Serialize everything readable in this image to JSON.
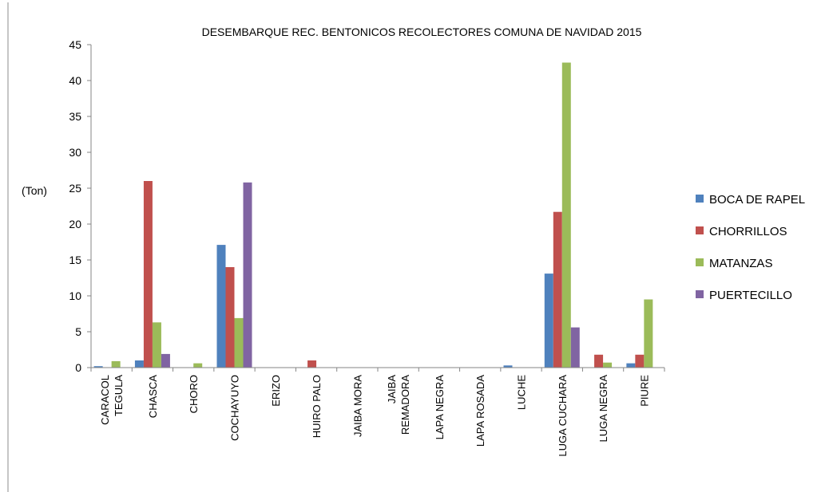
{
  "chart_data": {
    "type": "bar",
    "title": "DESEMBARQUE  REC. BENTONICOS  RECOLECTORES COMUNA DE NAVIDAD  2015",
    "ylabel": "(Ton)",
    "xlabel": "",
    "ylim": [
      0,
      45
    ],
    "yticks": [
      0,
      5,
      10,
      15,
      20,
      25,
      30,
      35,
      40,
      45
    ],
    "grid": false,
    "legend_position": "right",
    "categories": [
      [
        "CARACOL",
        "TEGULA"
      ],
      [
        "CHASCA"
      ],
      [
        "CHORO"
      ],
      [
        "COCHAYUYO"
      ],
      [
        "ERIZO"
      ],
      [
        "HUIRO PALO"
      ],
      [
        "JAIBA MORA"
      ],
      [
        "JAIBA",
        "REMADORA"
      ],
      [
        "LAPA NEGRA"
      ],
      [
        "LAPA ROSADA"
      ],
      [
        "LUCHE"
      ],
      [
        "LUGA CUCHARA"
      ],
      [
        "LUGA NEGRA"
      ],
      [
        "PIURE"
      ]
    ],
    "series": [
      {
        "name": "BOCA DE RAPEL",
        "color": "#4F81BD",
        "values": [
          0.2,
          1.0,
          0,
          17.1,
          0,
          0,
          0,
          0,
          0,
          0,
          0.3,
          13.1,
          0,
          0.6
        ]
      },
      {
        "name": "CHORRILLOS",
        "color": "#C0504D",
        "values": [
          0,
          26.0,
          0,
          14.0,
          0,
          1.0,
          0,
          0,
          0,
          0,
          0,
          21.7,
          1.8,
          1.8
        ]
      },
      {
        "name": "MATANZAS",
        "color": "#9BBB59",
        "values": [
          0.9,
          6.3,
          0.6,
          6.9,
          0,
          0,
          0,
          0,
          0,
          0,
          0,
          42.5,
          0.7,
          9.5
        ]
      },
      {
        "name": "PUERTECILLO",
        "color": "#8064A2",
        "values": [
          0,
          1.9,
          0,
          25.8,
          0,
          0,
          0,
          0,
          0,
          0,
          0,
          5.6,
          0,
          0
        ]
      }
    ]
  }
}
